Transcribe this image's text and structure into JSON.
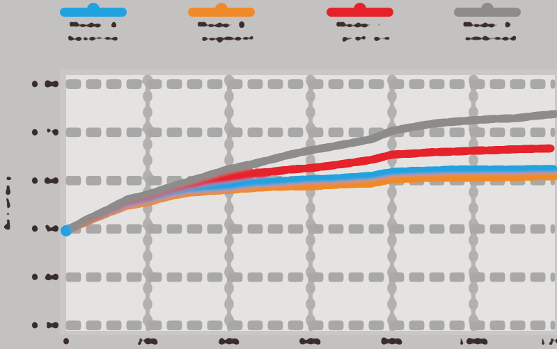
{
  "legend": {
    "items": [
      {
        "name": "Model A",
        "desc": "(baseline)",
        "color": "#21a2e0"
      },
      {
        "name": "Model B",
        "desc": "(+ augment)",
        "color": "#f08a28"
      },
      {
        "name": "Model C",
        "desc": "(+ pretrain)",
        "color": "#e6212b"
      },
      {
        "name": "Model D",
        "desc": "(combined)",
        "color": "#8d8c8b"
      }
    ]
  },
  "y_axis": {
    "title": "Accuracy",
    "ticks": [
      {
        "label": "0.80",
        "value": 0.8
      },
      {
        "label": "0.70",
        "value": 0.7
      },
      {
        "label": "0.60",
        "value": 0.6
      },
      {
        "label": "0.50",
        "value": 0.5
      },
      {
        "label": "0.40",
        "value": 0.4
      },
      {
        "label": "0.30",
        "value": 0.3
      }
    ]
  },
  "x_axis": {
    "ticks": [
      {
        "label": "0",
        "value": 0
      },
      {
        "label": "20k",
        "value": 20000
      },
      {
        "label": "40k",
        "value": 40000
      },
      {
        "label": "60k",
        "value": 60000
      },
      {
        "label": "80k",
        "value": 80000
      },
      {
        "label": "100k",
        "value": 100000
      },
      {
        "label": "120k",
        "value": 120000
      }
    ]
  },
  "chart_data": {
    "type": "line",
    "title": "",
    "xlabel": "",
    "ylabel": "Accuracy",
    "xlim": [
      0,
      120000
    ],
    "ylim": [
      0.28,
      0.83
    ],
    "grid": true,
    "legend_position": "top",
    "x": [
      0,
      5000,
      10000,
      15000,
      20000,
      25000,
      30000,
      35000,
      40000,
      45000,
      50000,
      55000,
      60000,
      65000,
      70000,
      75000,
      80000,
      85000,
      90000,
      95000,
      100000,
      105000,
      110000,
      115000,
      120000
    ],
    "series": [
      {
        "id": "blue",
        "name": "Model A (baseline)",
        "color": "#21a2e0",
        "values": [
          0.496,
          0.518,
          0.536,
          0.554,
          0.562,
          0.574,
          0.582,
          0.585,
          0.588,
          0.594,
          0.597,
          0.6,
          0.603,
          0.604,
          0.607,
          0.61,
          0.618,
          0.62,
          0.621,
          0.623,
          0.623,
          0.623,
          0.623,
          0.624,
          0.624
        ]
      },
      {
        "id": "orange",
        "name": "Model B (+ augment)",
        "color": "#f08a28",
        "values": [
          0.496,
          0.515,
          0.532,
          0.548,
          0.555,
          0.567,
          0.575,
          0.578,
          0.581,
          0.584,
          0.587,
          0.588,
          0.588,
          0.591,
          0.593,
          0.594,
          0.603,
          0.604,
          0.606,
          0.606,
          0.606,
          0.607,
          0.607,
          0.609,
          0.609
        ]
      },
      {
        "id": "red",
        "name": "Model C (+ pretrain)",
        "color": "#e6212b",
        "values": [
          0.496,
          0.518,
          0.538,
          0.558,
          0.567,
          0.581,
          0.591,
          0.6,
          0.607,
          0.614,
          0.618,
          0.623,
          0.626,
          0.631,
          0.637,
          0.643,
          0.654,
          0.656,
          0.659,
          0.66,
          0.662,
          0.663,
          0.665,
          0.666,
          0.667
        ]
      },
      {
        "id": "gray",
        "name": "Model D (combined)",
        "color": "#8d8c8b",
        "values": [
          0.496,
          0.519,
          0.539,
          0.561,
          0.571,
          0.585,
          0.598,
          0.611,
          0.624,
          0.633,
          0.643,
          0.654,
          0.663,
          0.67,
          0.678,
          0.686,
          0.703,
          0.711,
          0.718,
          0.722,
          0.725,
          0.728,
          0.729,
          0.734,
          0.738
        ]
      }
    ]
  }
}
